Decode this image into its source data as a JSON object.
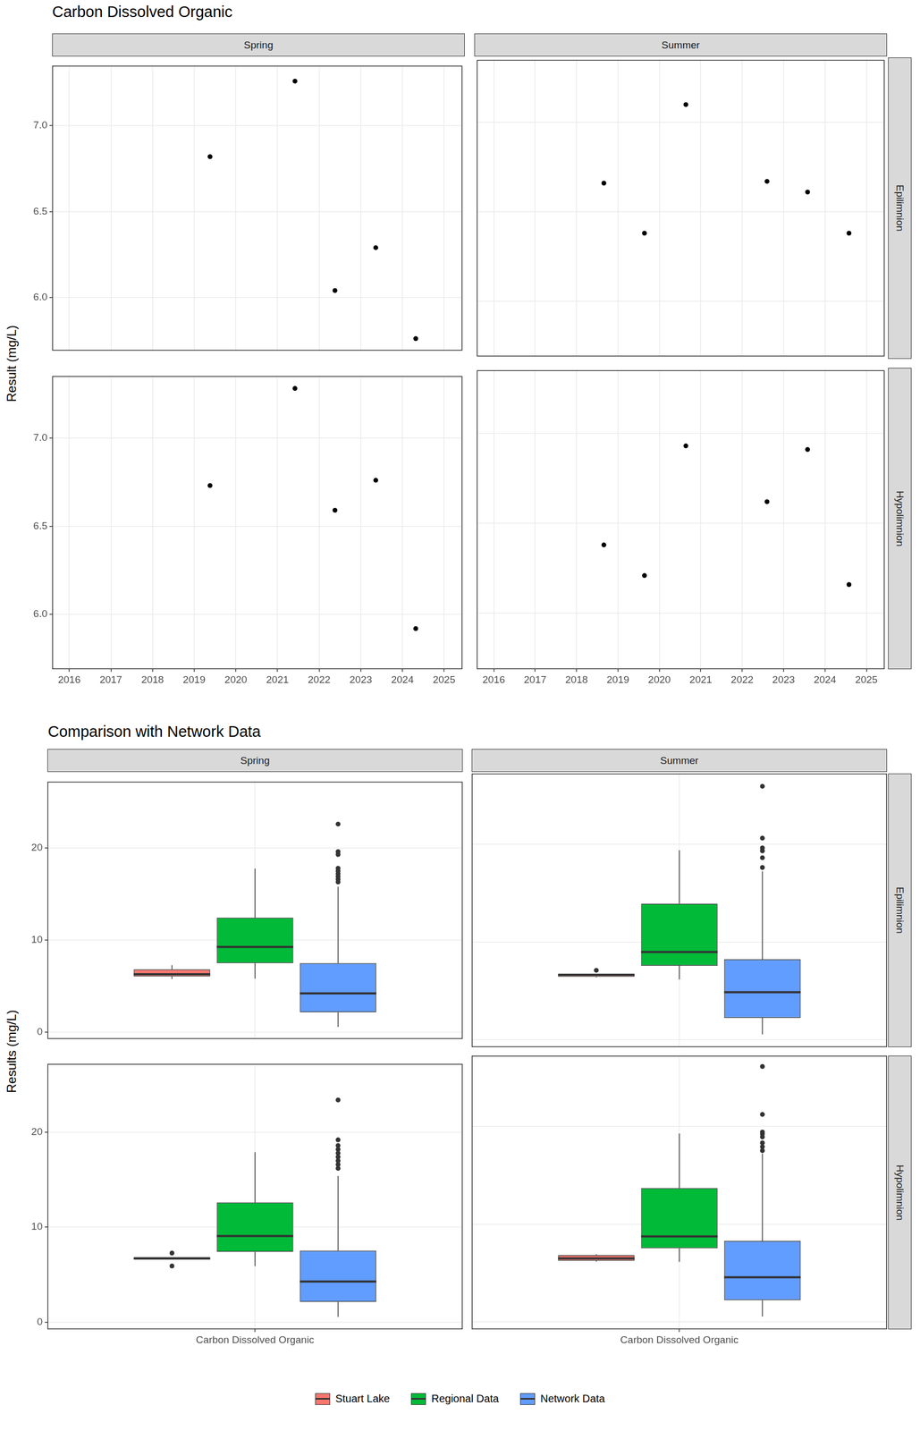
{
  "chart_data": [
    {
      "type": "scatter",
      "title": "Carbon Dissolved Organic",
      "ylabel": "Result (mg/L)",
      "columns": [
        "Spring",
        "Summer"
      ],
      "rows": [
        "Epilimnion",
        "Hypolimnion"
      ],
      "xlim": [
        2015.59,
        2025.44
      ],
      "xticks": [
        2016,
        2017,
        2018,
        2019,
        2020,
        2021,
        2022,
        2023,
        2024,
        2025
      ],
      "ylim": [
        5.69,
        7.35
      ],
      "yticks": [
        {
          "value": 6,
          "label": "6.0"
        },
        {
          "value": 6.5,
          "label": "6.5"
        },
        {
          "value": 7,
          "label": "7.0"
        }
      ],
      "grid": true,
      "color": "#000000",
      "marker": "circle",
      "panels": [
        {
          "column": "Spring",
          "row": "Epilimnion",
          "x": [
            2019.38,
            2021.42,
            2022.38,
            2023.36,
            2024.32
          ],
          "values": [
            6.82,
            7.26,
            6.04,
            6.29,
            5.76
          ]
        },
        {
          "column": "Summer",
          "row": "Epilimnion",
          "x": [
            2018.66,
            2019.64,
            2020.64,
            2022.6,
            2023.58,
            2024.58
          ],
          "values": [
            6.66,
            6.38,
            7.1,
            6.67,
            6.61,
            6.38
          ]
        },
        {
          "column": "Spring",
          "row": "Hypolimnion",
          "x": [
            2019.38,
            2021.42,
            2022.38,
            2023.36,
            2024.32
          ],
          "values": [
            6.73,
            7.28,
            6.59,
            6.76,
            5.92
          ]
        },
        {
          "column": "Summer",
          "row": "Hypolimnion",
          "x": [
            2018.66,
            2019.64,
            2020.64,
            2022.6,
            2023.58,
            2024.58
          ],
          "values": [
            6.38,
            6.21,
            6.93,
            6.62,
            6.91,
            6.16
          ]
        }
      ]
    },
    {
      "type": "box",
      "title": "Comparison with Network Data",
      "ylabel": "Results (mg/L)",
      "columns": [
        "Spring",
        "Summer"
      ],
      "rows": [
        "Epilimnion",
        "Hypolimnion"
      ],
      "categories": [
        "Carbon Dissolved Organic"
      ],
      "ylim": [
        -0.75,
        27.2
      ],
      "yticks": [
        0,
        10,
        20
      ],
      "grid": true,
      "legend": "bottom",
      "series": [
        {
          "name": "Stuart Lake",
          "color": "#f8766d"
        },
        {
          "name": "Regional Data",
          "color": "#00ba38"
        },
        {
          "name": "Network Data",
          "color": "#619cff"
        }
      ],
      "panels": [
        {
          "column": "Spring",
          "row": "Epilimnion",
          "series": [
            {
              "name": "Stuart Lake",
              "min": 5.76,
              "q1": 6.04,
              "median": 6.29,
              "q3": 6.82,
              "max": 7.26,
              "outliers": []
            },
            {
              "name": "Regional Data",
              "min": 5.8,
              "q1": 7.48,
              "median": 9.25,
              "q3": 12.43,
              "max": 17.76,
              "outliers": []
            },
            {
              "name": "Network Data",
              "min": 0.56,
              "q1": 2.15,
              "median": 4.2,
              "q3": 7.48,
              "max": 15.8,
              "outliers": [
                22.6,
                19.6,
                19.3,
                17.8,
                17.5,
                17.2,
                16.9,
                16.6,
                16.3
              ]
            }
          ]
        },
        {
          "column": "Summer",
          "row": "Epilimnion",
          "series": [
            {
              "name": "Stuart Lake",
              "min": 6.38,
              "q1": 6.44,
              "median": 6.64,
              "q3": 6.67,
              "max": 6.67,
              "outliers": [
                7.1
              ]
            },
            {
              "name": "Regional Data",
              "min": 6.17,
              "q1": 7.57,
              "median": 8.97,
              "q3": 13.9,
              "max": 19.35,
              "outliers": []
            },
            {
              "name": "Network Data",
              "min": 0.56,
              "q1": 2.24,
              "median": 4.86,
              "q3": 8.22,
              "max": 17.2,
              "outliers": [
                25.9,
                20.6,
                19.6,
                19.3,
                18.6,
                17.6
              ]
            }
          ]
        },
        {
          "column": "Spring",
          "row": "Hypolimnion",
          "series": [
            {
              "name": "Stuart Lake",
              "min": 6.59,
              "q1": 6.59,
              "median": 6.73,
              "q3": 6.76,
              "max": 6.76,
              "outliers": [
                7.28,
                5.92
              ]
            },
            {
              "name": "Regional Data",
              "min": 5.9,
              "q1": 7.4,
              "median": 9.07,
              "q3": 12.6,
              "max": 17.9,
              "outliers": []
            },
            {
              "name": "Network Data",
              "min": 0.56,
              "q1": 2.14,
              "median": 4.28,
              "q3": 7.53,
              "max": 15.4,
              "outliers": [
                23.4,
                19.2,
                18.6,
                18.2,
                17.8,
                17.4,
                17.0,
                16.6,
                16.2
              ]
            }
          ]
        },
        {
          "column": "Summer",
          "row": "Hypolimnion",
          "series": [
            {
              "name": "Stuart Lake",
              "min": 6.16,
              "q1": 6.25,
              "median": 6.5,
              "q3": 6.84,
              "max": 6.93,
              "outliers": []
            },
            {
              "name": "Regional Data",
              "min": 6.14,
              "q1": 7.53,
              "median": 8.74,
              "q3": 13.67,
              "max": 19.25,
              "outliers": []
            },
            {
              "name": "Network Data",
              "min": 0.56,
              "q1": 2.23,
              "median": 4.56,
              "q3": 8.28,
              "max": 17.2,
              "outliers": [
                26.1,
                21.2,
                19.4,
                19.2,
                18.9,
                18.3,
                17.9,
                17.5
              ]
            }
          ]
        }
      ]
    }
  ]
}
